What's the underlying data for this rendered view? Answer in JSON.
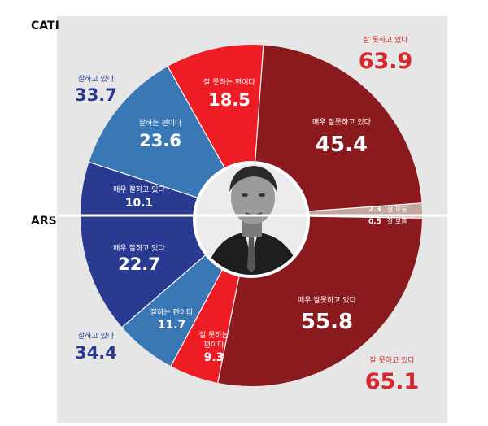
{
  "chart_data": [
    {
      "type": "pie",
      "title": "CATI",
      "slices": [
        {
          "label": "잘 못하는 편이다",
          "value": 18.5,
          "color": "#ee1c24"
        },
        {
          "label": "매우 잘못하고 있다",
          "value": 45.4,
          "color": "#8b1a1e"
        },
        {
          "label": "잘 모름",
          "value": 2.3,
          "color": "#c4a79f"
        },
        {
          "label": "매우 잘하고 있다",
          "value": 10.1,
          "color": "#2b3a91"
        },
        {
          "label": "잘하는 편이다",
          "value": 23.6,
          "color": "#3a78b5"
        }
      ],
      "groups": [
        {
          "label": "잘 못하고 있다",
          "value": 63.9
        },
        {
          "label": "잘하고 있다",
          "value": 33.7
        }
      ]
    },
    {
      "type": "pie",
      "title": "ARS",
      "slices": [
        {
          "label": "매우 잘하고 있다",
          "value": 22.7,
          "color": "#2b3a91"
        },
        {
          "label": "잘하는 편이다",
          "value": 11.7,
          "color": "#3a78b5"
        },
        {
          "label": "잘 못하는 편이다",
          "value": 9.3,
          "color": "#ee1c24"
        },
        {
          "label": "매우 잘못하고 있다",
          "value": 55.8,
          "color": "#8b1a1e"
        },
        {
          "label": "잘 모름",
          "value": 0.5,
          "color": "#c4a79f"
        }
      ],
      "groups": [
        {
          "label": "잘 못하고 있다",
          "value": 65.1
        },
        {
          "label": "잘하고 있다",
          "value": 34.4
        }
      ]
    }
  ],
  "labels": {
    "cati": "CATI",
    "ars": "ARS",
    "bad_total_label": "잘 못하고 있다",
    "good_total_label": "잘하고 있다",
    "cati_bad_total": "63.9",
    "cati_good_total": "33.7",
    "ars_bad_total": "65.1",
    "ars_good_total": "34.4",
    "somewhat_bad": "잘 못하는 편이다",
    "somewhat_bad_l1": "잘 못하는",
    "somewhat_bad_l2": "편이다",
    "very_bad": "매우 잘못하고 있다",
    "somewhat_good": "잘하는 편이다",
    "very_good": "매우 잘하고 있다",
    "dont_know": "잘 모름",
    "cati_somewhat_bad": "18.5",
    "cati_very_bad": "45.4",
    "cati_somewhat_good": "23.6",
    "cati_very_good": "10.1",
    "cati_dont_know": "2.3",
    "ars_somewhat_bad": "9.3",
    "ars_very_bad": "55.8",
    "ars_somewhat_good": "11.7",
    "ars_very_good": "22.7",
    "ars_dont_know": "0.5"
  },
  "colors": {
    "dark_red": "#8b1a1e",
    "red": "#ee1c24",
    "dark_blue": "#2b3a91",
    "blue": "#3a78b5",
    "unknown": "#c4a79f",
    "panel": "#e6e6e6",
    "total_red": "#d7262c",
    "total_blue": "#2b3a91"
  },
  "center_image": "portrait-photo"
}
